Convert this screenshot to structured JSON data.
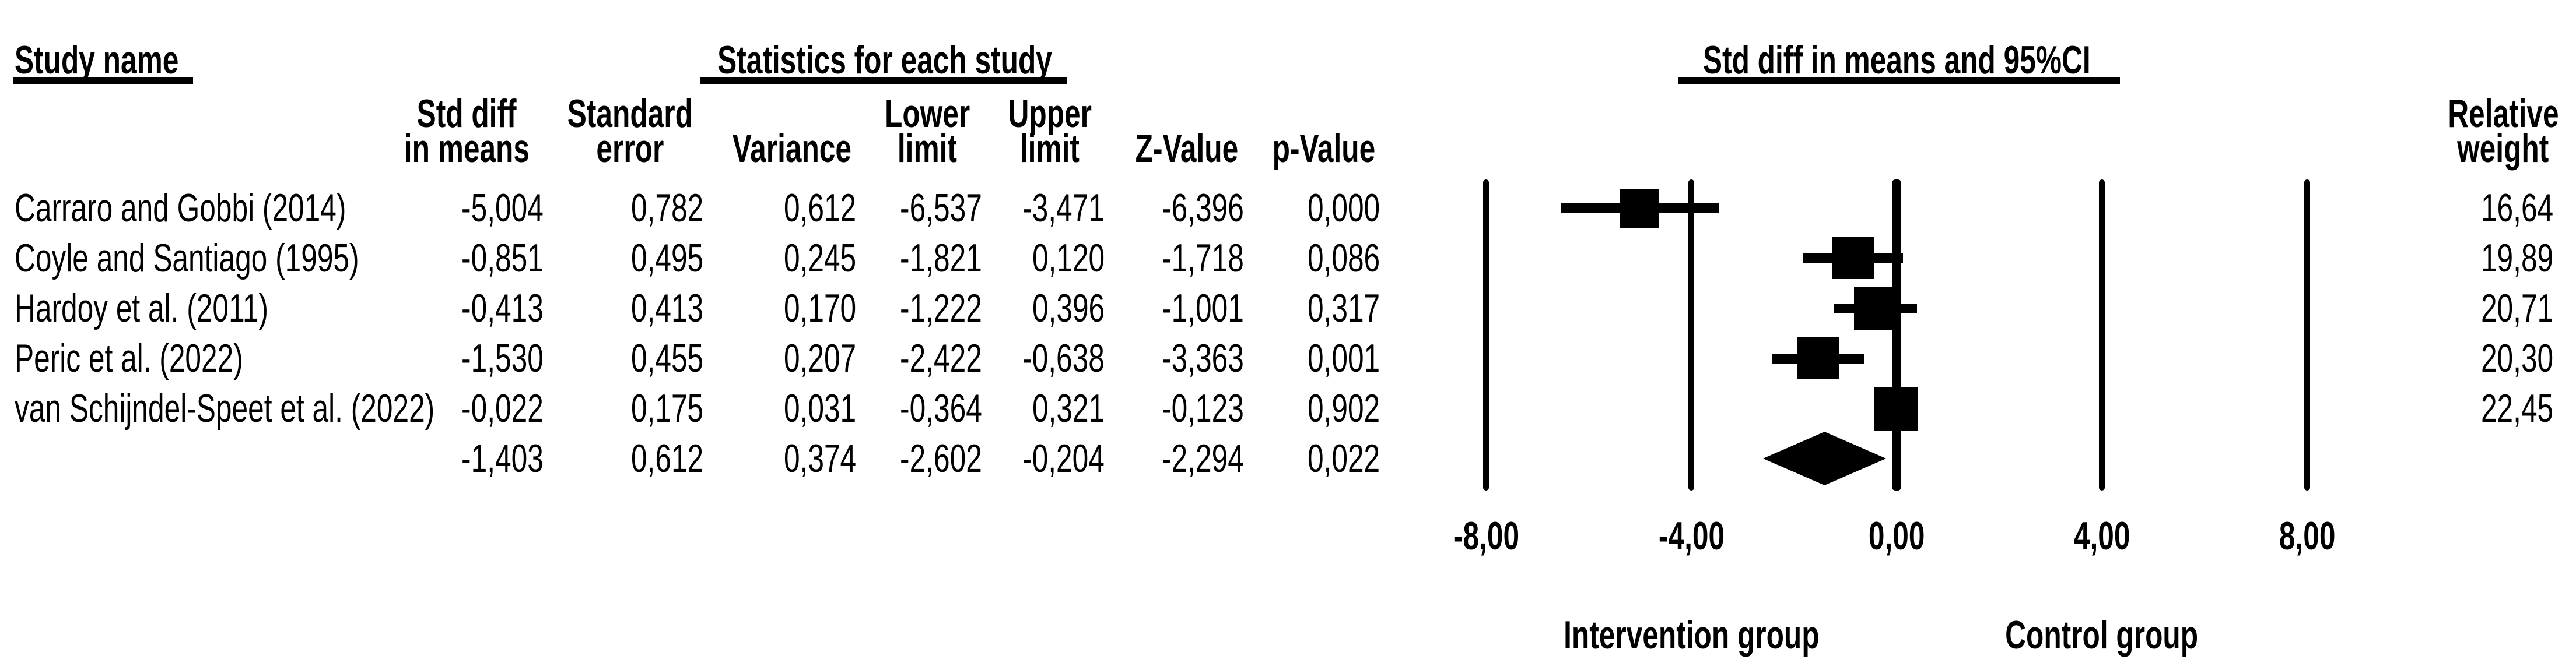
{
  "page": {
    "background": "#ffffff",
    "foreground": "#000000"
  },
  "chart_data": {
    "type": "forest",
    "decimal_separator": ",",
    "title_left": "Study name",
    "title_stats": "Statistics for each study",
    "title_plot": "Std diff in means and 95%CI",
    "stat_columns": [
      [
        "Std diff",
        "in means"
      ],
      [
        "Standard",
        "error"
      ],
      [
        "",
        "Variance"
      ],
      [
        "Lower",
        "limit"
      ],
      [
        "Upper",
        "limit"
      ],
      [
        "",
        "Z-Value"
      ],
      [
        "",
        "p-Value"
      ]
    ],
    "weight_column": [
      "Relative",
      "weight"
    ],
    "studies": [
      {
        "name": "Carraro and Gobbi (2014)",
        "std_diff": -5.004,
        "standard_error": 0.782,
        "variance": 0.612,
        "lower_limit": -6.537,
        "upper_limit": -3.471,
        "z_value": -6.396,
        "p_value": 0.0,
        "relative_weight": 16.64,
        "cells": [
          "-5,004",
          "0,782",
          "0,612",
          "-6,537",
          "-3,471",
          "-6,396",
          "0,000"
        ],
        "weight_label": "16,64"
      },
      {
        "name": "Coyle and Santiago (1995)",
        "std_diff": -0.851,
        "standard_error": 0.495,
        "variance": 0.245,
        "lower_limit": -1.821,
        "upper_limit": 0.12,
        "z_value": -1.718,
        "p_value": 0.086,
        "relative_weight": 19.89,
        "cells": [
          "-0,851",
          "0,495",
          "0,245",
          "-1,821",
          "0,120",
          "-1,718",
          "0,086"
        ],
        "weight_label": "19,89"
      },
      {
        "name": "Hardoy et al. (2011)",
        "std_diff": -0.413,
        "standard_error": 0.413,
        "variance": 0.17,
        "lower_limit": -1.222,
        "upper_limit": 0.396,
        "z_value": -1.001,
        "p_value": 0.317,
        "relative_weight": 20.71,
        "cells": [
          "-0,413",
          "0,413",
          "0,170",
          "-1,222",
          "0,396",
          "-1,001",
          "0,317"
        ],
        "weight_label": "20,71"
      },
      {
        "name": "Peric et al. (2022)",
        "std_diff": -1.53,
        "standard_error": 0.455,
        "variance": 0.207,
        "lower_limit": -2.422,
        "upper_limit": -0.638,
        "z_value": -3.363,
        "p_value": 0.001,
        "relative_weight": 20.3,
        "cells": [
          "-1,530",
          "0,455",
          "0,207",
          "-2,422",
          "-0,638",
          "-3,363",
          "0,001"
        ],
        "weight_label": "20,30"
      },
      {
        "name": "van Schijndel-Speet et al. (2022)",
        "std_diff": -0.022,
        "standard_error": 0.175,
        "variance": 0.031,
        "lower_limit": -0.364,
        "upper_limit": 0.321,
        "z_value": -0.123,
        "p_value": 0.902,
        "relative_weight": 22.45,
        "cells": [
          "-0,022",
          "0,175",
          "0,031",
          "-0,364",
          "0,321",
          "-0,123",
          "0,902"
        ],
        "weight_label": "22,45"
      }
    ],
    "summary": {
      "std_diff": -1.403,
      "standard_error": 0.612,
      "variance": 0.374,
      "lower_limit": -2.602,
      "upper_limit": -0.204,
      "z_value": -2.294,
      "p_value": 0.022,
      "cells": [
        "-1,403",
        "0,612",
        "0,374",
        "-2,602",
        "-0,204",
        "-2,294",
        "0,022"
      ]
    },
    "x_axis": {
      "range": [
        -8,
        8
      ],
      "ticks": [
        -8,
        -4,
        0,
        4,
        8
      ],
      "tick_labels": [
        "-8,00",
        "-4,00",
        "0,00",
        "4,00",
        "8,00"
      ],
      "grid": "vertical-lines"
    },
    "group_labels": [
      {
        "text": "Intervention group",
        "at": -4
      },
      {
        "text": "Control group",
        "at": 4
      }
    ]
  }
}
